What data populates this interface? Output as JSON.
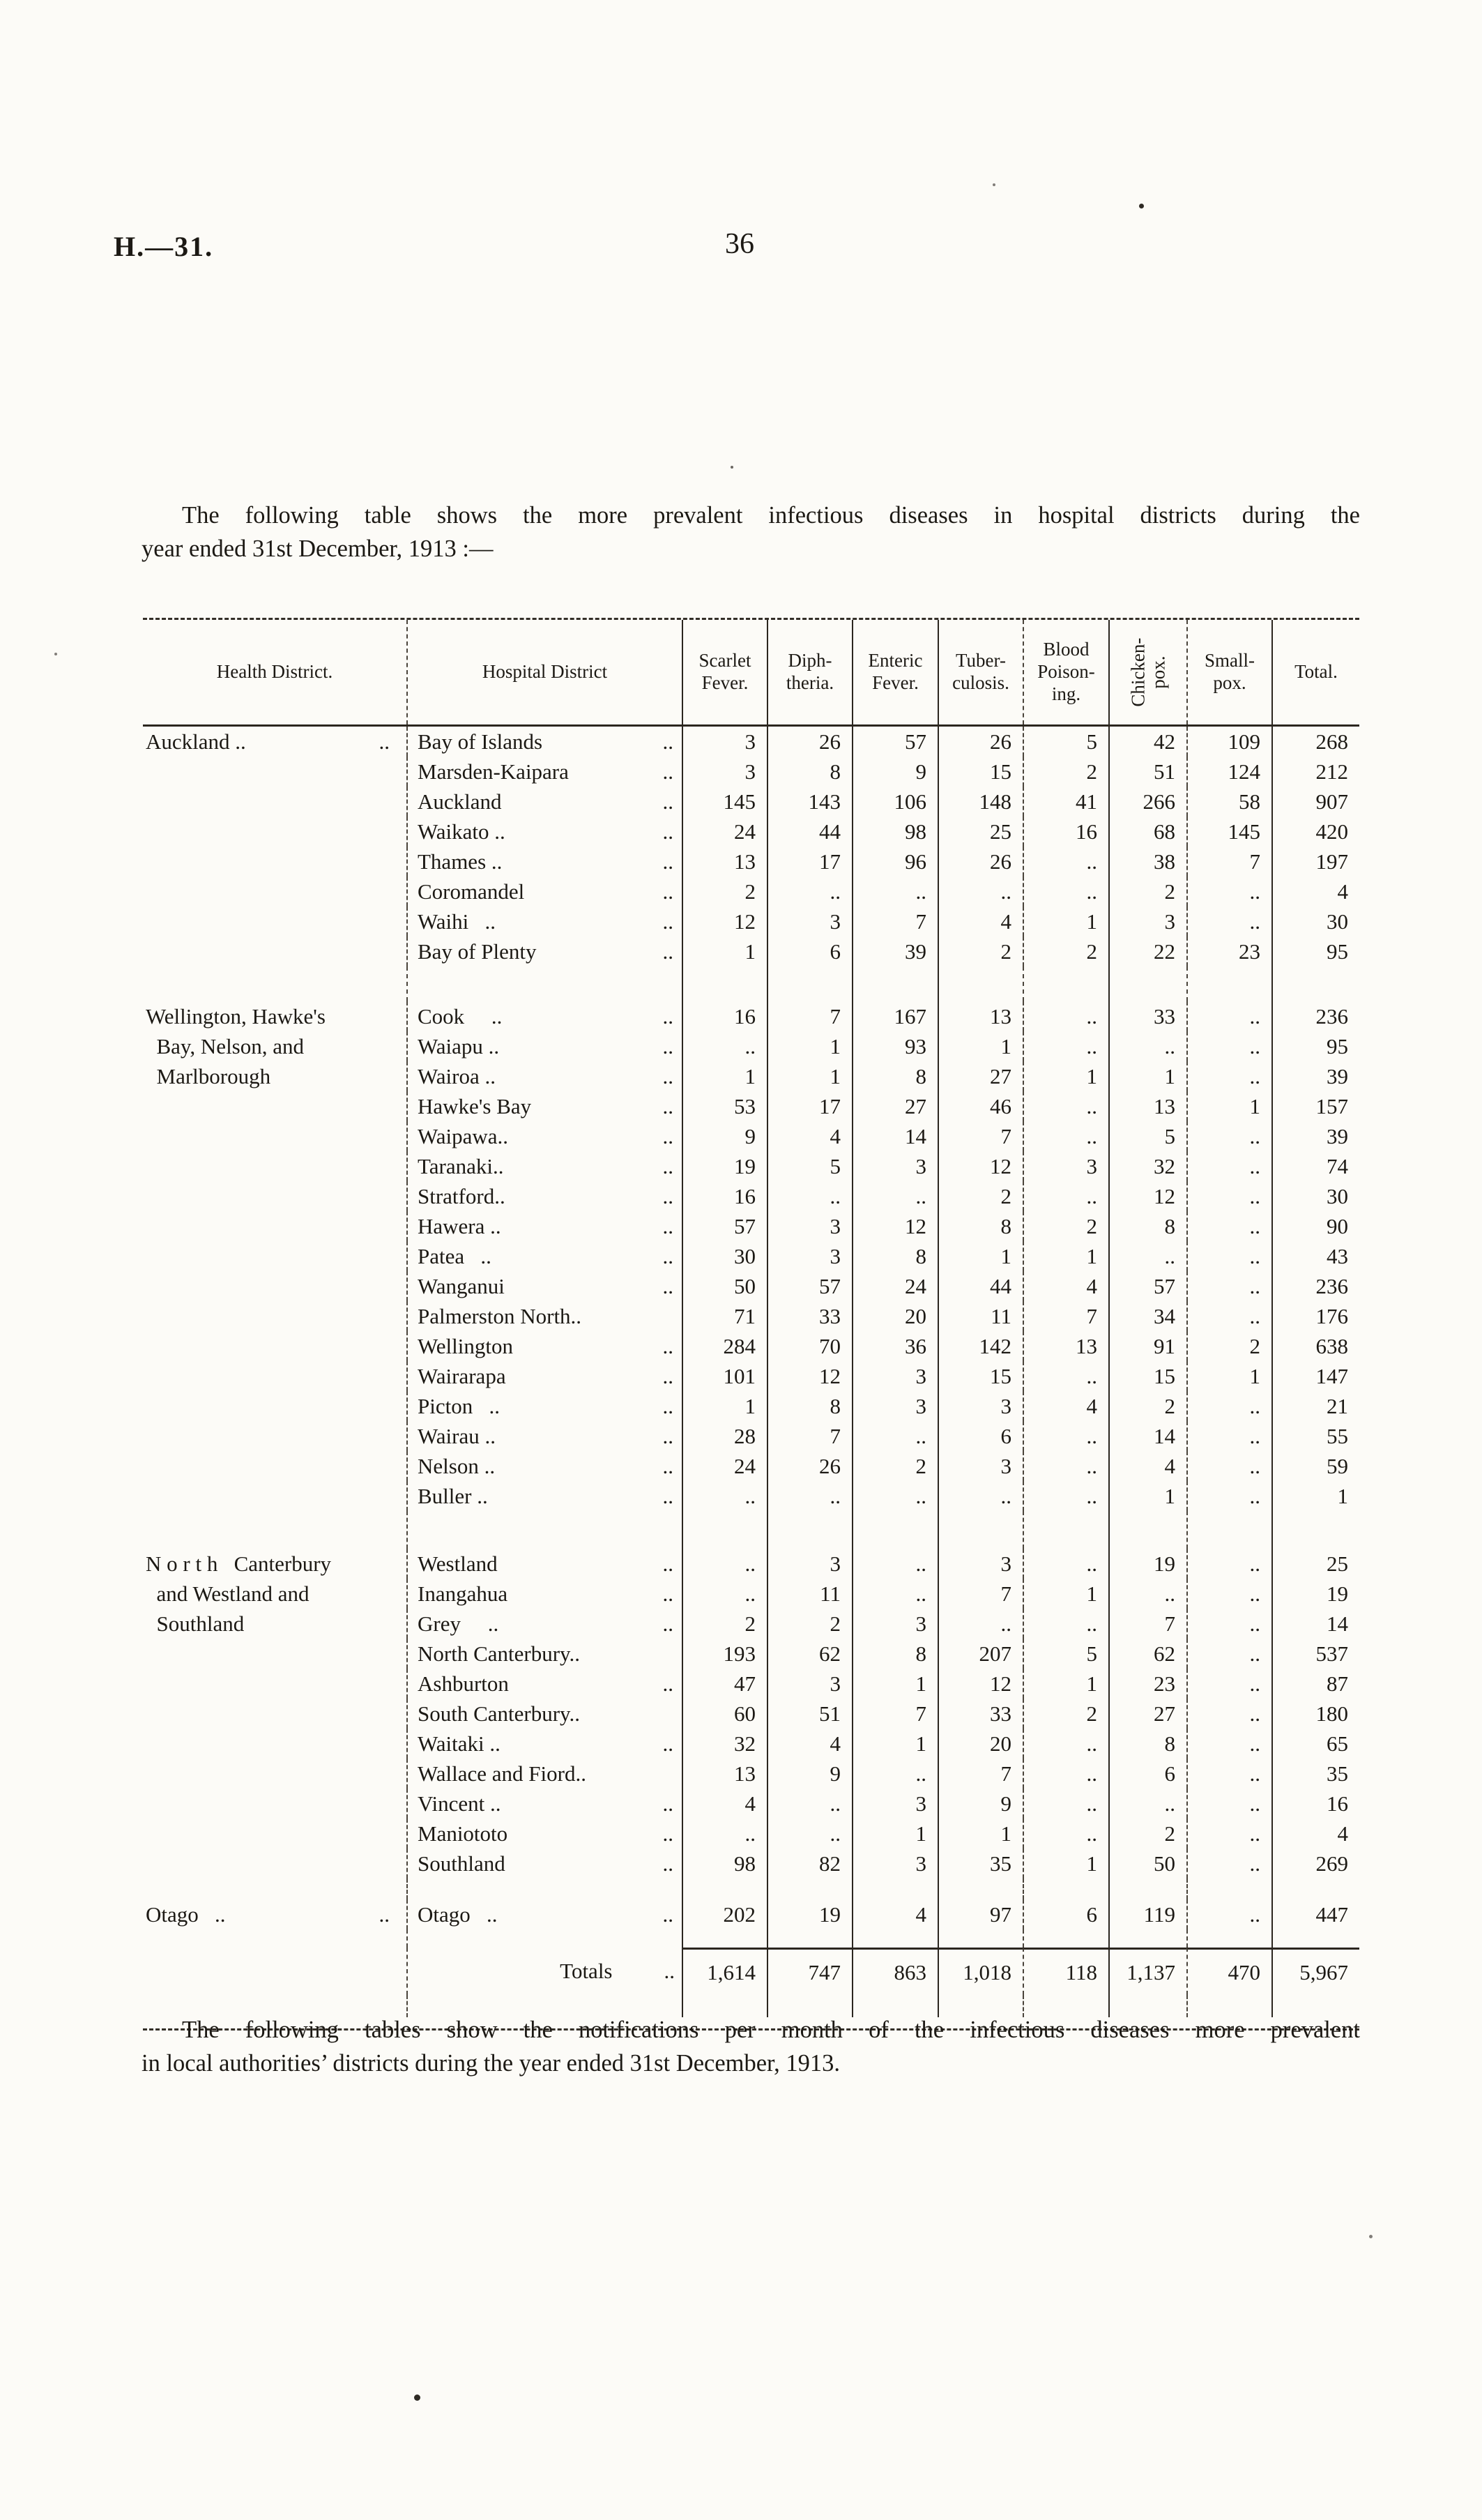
{
  "page": {
    "doc_ref": "H.—31.",
    "page_number": "36",
    "intro": {
      "line1": "The following table shows the more prevalent infectious diseases in hospital districts during the",
      "line2": "year ended 31st December, 1913 :—"
    },
    "footer": {
      "line1": "The following tables show the notifications per month of the infectious diseases more prevalent",
      "line2": "in local authorities’ districts during the year ended 31st December, 1913."
    }
  },
  "table": {
    "columns": [
      {
        "label": "Health District."
      },
      {
        "label": "Hospital District"
      },
      {
        "label": "Scarlet\nFever."
      },
      {
        "label": "Diph-\ntheria."
      },
      {
        "label": "Enteric\nFever."
      },
      {
        "label": "Tuber-\nculosis."
      },
      {
        "label": "Blood\nPoison-\ning."
      },
      {
        "label": "Chicken-\npox."
      },
      {
        "label": "Small-\npox."
      },
      {
        "label": "Total."
      }
    ],
    "rows": [
      {
        "district": "Auckland ..",
        "ddots": "..",
        "name": "Bay of Islands",
        "dots": "..",
        "values": [
          "3",
          "26",
          "57",
          "26",
          "5",
          "42",
          "109",
          "268"
        ]
      },
      {
        "name": "Marsden-Kaipara",
        "dots": "..",
        "values": [
          "3",
          "8",
          "9",
          "15",
          "2",
          "51",
          "124",
          "212"
        ]
      },
      {
        "name": "Auckland",
        "dots": "..",
        "values": [
          "145",
          "143",
          "106",
          "148",
          "41",
          "266",
          "58",
          "907"
        ]
      },
      {
        "name": "Waikato ..",
        "dots": "..",
        "values": [
          "24",
          "44",
          "98",
          "25",
          "16",
          "68",
          "145",
          "420"
        ]
      },
      {
        "name": "Thames ..",
        "dots": "..",
        "values": [
          "13",
          "17",
          "96",
          "26",
          "..",
          "38",
          "7",
          "197"
        ]
      },
      {
        "name": "Coromandel",
        "dots": "..",
        "values": [
          "2",
          "..",
          "..",
          "..",
          "..",
          "2",
          "..",
          "4"
        ]
      },
      {
        "name": "Waihi  ..",
        "dots": "..",
        "values": [
          "12",
          "3",
          "7",
          "4",
          "1",
          "3",
          "..",
          "30"
        ]
      },
      {
        "name": "Bay of Plenty",
        "dots": "..",
        "values": [
          "1",
          "6",
          "39",
          "2",
          "2",
          "22",
          "23",
          "95"
        ]
      },
      {
        "gap": true,
        "h": 50
      },
      {
        "district": "Wellington, Hawke's",
        "name": "Cook   ..",
        "dots": "..",
        "values": [
          "16",
          "7",
          "167",
          "13",
          "..",
          "33",
          "..",
          "236"
        ]
      },
      {
        "district": " Bay, Nelson, and",
        "name": "Waiapu ..",
        "dots": "..",
        "values": [
          "..",
          "1",
          "93",
          "1",
          "..",
          "..",
          "..",
          "95"
        ]
      },
      {
        "district": " Marlborough",
        "name": "Wairoa ..",
        "dots": "..",
        "values": [
          "1",
          "1",
          "8",
          "27",
          "1",
          "1",
          "..",
          "39"
        ]
      },
      {
        "name": "Hawke's Bay",
        "dots": "..",
        "values": [
          "53",
          "17",
          "27",
          "46",
          "..",
          "13",
          "1",
          "157"
        ]
      },
      {
        "name": "Waipawa..",
        "dots": "..",
        "values": [
          "9",
          "4",
          "14",
          "7",
          "..",
          "5",
          "..",
          "39"
        ]
      },
      {
        "name": "Taranaki..",
        "dots": "..",
        "values": [
          "19",
          "5",
          "3",
          "12",
          "3",
          "32",
          "..",
          "74"
        ]
      },
      {
        "name": "Stratford..",
        "dots": "..",
        "values": [
          "16",
          "..",
          "..",
          "2",
          "..",
          "12",
          "..",
          "30"
        ]
      },
      {
        "name": "Hawera ..",
        "dots": "..",
        "values": [
          "57",
          "3",
          "12",
          "8",
          "2",
          "8",
          "..",
          "90"
        ]
      },
      {
        "name": "Patea  ..",
        "dots": "..",
        "values": [
          "30",
          "3",
          "8",
          "1",
          "1",
          "..",
          "..",
          "43"
        ]
      },
      {
        "name": "Wanganui",
        "dots": "..",
        "values": [
          "50",
          "57",
          "24",
          "44",
          "4",
          "57",
          "..",
          "236"
        ]
      },
      {
        "name": "Palmerston North..",
        "dots": "",
        "values": [
          "71",
          "33",
          "20",
          "11",
          "7",
          "34",
          "..",
          "176"
        ]
      },
      {
        "name": "Wellington",
        "dots": "..",
        "values": [
          "284",
          "70",
          "36",
          "142",
          "13",
          "91",
          "2",
          "638"
        ]
      },
      {
        "name": "Wairarapa",
        "dots": "..",
        "values": [
          "101",
          "12",
          "3",
          "15",
          "..",
          "15",
          "1",
          "147"
        ]
      },
      {
        "name": "Picton  ..",
        "dots": "..",
        "values": [
          "1",
          "8",
          "3",
          "3",
          "4",
          "2",
          "..",
          "21"
        ]
      },
      {
        "name": "Wairau ..",
        "dots": "..",
        "values": [
          "28",
          "7",
          "..",
          "6",
          "..",
          "14",
          "..",
          "55"
        ]
      },
      {
        "name": "Nelson ..",
        "dots": "..",
        "values": [
          "24",
          "26",
          "2",
          "3",
          "..",
          "4",
          "..",
          "59"
        ]
      },
      {
        "name": "Buller ..",
        "dots": "..",
        "values": [
          "..",
          "..",
          "..",
          "..",
          "..",
          "1",
          "..",
          "1"
        ]
      },
      {
        "gap": true,
        "h": 54
      },
      {
        "district": "N o r t h  Canterbury",
        "name": "Westland",
        "dots": "..",
        "values": [
          "..",
          "3",
          "..",
          "3",
          "..",
          "19",
          "..",
          "25"
        ]
      },
      {
        "district": " and Westland and",
        "name": "Inangahua",
        "dots": "..",
        "values": [
          "..",
          "11",
          "..",
          "7",
          "1",
          "..",
          "..",
          "19"
        ]
      },
      {
        "district": " Southland",
        "name": "Grey   ..",
        "dots": "..",
        "values": [
          "2",
          "2",
          "3",
          "..",
          "..",
          "7",
          "..",
          "14"
        ]
      },
      {
        "name": "North Canterbury..",
        "dots": "",
        "values": [
          "193",
          "62",
          "8",
          "207",
          "5",
          "62",
          "..",
          "537"
        ]
      },
      {
        "name": "Ashburton",
        "dots": "..",
        "values": [
          "47",
          "3",
          "1",
          "12",
          "1",
          "23",
          "..",
          "87"
        ]
      },
      {
        "name": "South Canterbury..",
        "dots": "",
        "values": [
          "60",
          "51",
          "7",
          "33",
          "2",
          "27",
          "..",
          "180"
        ]
      },
      {
        "name": "Waitaki ..",
        "dots": "..",
        "values": [
          "32",
          "4",
          "1",
          "20",
          "..",
          "8",
          "..",
          "65"
        ]
      },
      {
        "name": "Wallace and Fiord..",
        "dots": "",
        "values": [
          "13",
          "9",
          "..",
          "7",
          "..",
          "6",
          "..",
          "35"
        ]
      },
      {
        "name": "Vincent ..",
        "dots": "..",
        "values": [
          "4",
          "..",
          "3",
          "9",
          "..",
          "..",
          "..",
          "16"
        ]
      },
      {
        "name": "Maniototo",
        "dots": "..",
        "values": [
          "..",
          "..",
          "1",
          "1",
          "..",
          "2",
          "..",
          "4"
        ]
      },
      {
        "name": "Southland",
        "dots": "..",
        "values": [
          "98",
          "82",
          "3",
          "35",
          "1",
          "50",
          "..",
          "269"
        ]
      },
      {
        "gap": true,
        "h": 30
      },
      {
        "district": "Otago  ..",
        "ddots": "..",
        "name": "Otago  ..",
        "dots": "..",
        "values": [
          "202",
          "19",
          "4",
          "97",
          "6",
          "119",
          "..",
          "447"
        ]
      },
      {
        "gap": true,
        "h": 26
      }
    ],
    "totals": {
      "label": "Totals",
      "dots": "..",
      "values": [
        "1,614",
        "747",
        "863",
        "1,018",
        "118",
        "1,137",
        "470",
        "5,967"
      ]
    }
  }
}
